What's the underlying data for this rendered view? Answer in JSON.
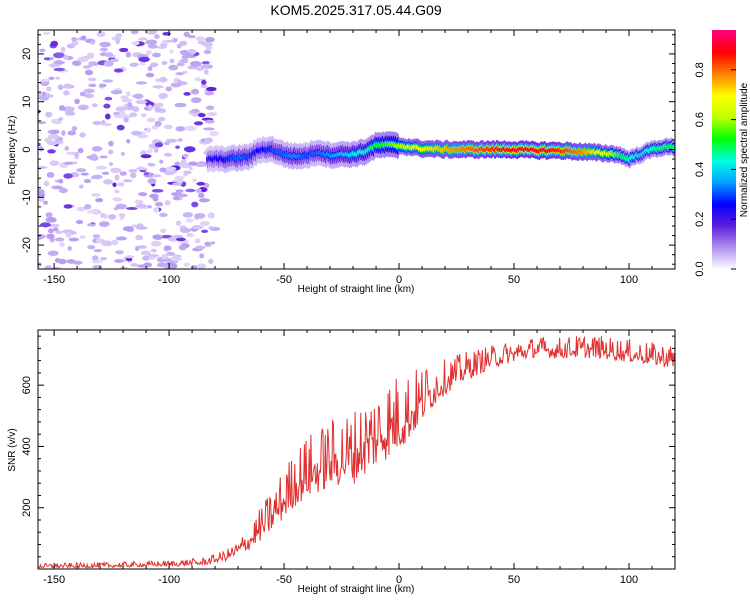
{
  "title": "KOM5.2025.317.05.44.G09",
  "chart_data": [
    {
      "type": "heatmap",
      "xlabel": "Height of straight line (km)",
      "ylabel": "Frequency (Hz)",
      "xlim": [
        -157,
        120
      ],
      "ylim": [
        -25,
        25
      ],
      "xticks": [
        -150,
        -100,
        -50,
        0,
        50,
        100
      ],
      "yticks": [
        -20,
        -10,
        0,
        10,
        20
      ],
      "colorbar": {
        "label": "Normalized spectral amplitude",
        "range": [
          0,
          0.96
        ],
        "ticks": [
          0.0,
          0.2,
          0.4,
          0.6,
          0.8
        ],
        "colors": [
          "#ffffff",
          "#b090f0",
          "#6020e0",
          "#0000ff",
          "#00a0ff",
          "#00ffe0",
          "#00ff00",
          "#c0ff00",
          "#ffff00",
          "#ff8000",
          "#ff0000",
          "#ff0080"
        ]
      },
      "noise_region_x": [
        -157,
        -80
      ],
      "signal_ridge": {
        "x": [
          -83,
          -75,
          -70,
          -65,
          -60,
          -55,
          -50,
          -45,
          -40,
          -35,
          -30,
          -25,
          -20,
          -15,
          -10,
          -5,
          0,
          5,
          10,
          20,
          30,
          40,
          50,
          60,
          70,
          80,
          90,
          95,
          100,
          105,
          110,
          115,
          120
        ],
        "freq": [
          -2,
          -2,
          -1.8,
          -1.5,
          0,
          0,
          -1,
          -1.5,
          -1.2,
          -0.5,
          -1.2,
          -1,
          -1,
          -0.5,
          0.8,
          1,
          0.8,
          0.5,
          0.2,
          0,
          0,
          0,
          0,
          -0.2,
          -0.2,
          -0.5,
          -0.8,
          -1,
          -2,
          -1,
          0,
          0.5,
          0.5
        ],
        "amp": [
          0.22,
          0.28,
          0.32,
          0.3,
          0.25,
          0.3,
          0.32,
          0.35,
          0.3,
          0.32,
          0.35,
          0.38,
          0.42,
          0.45,
          0.5,
          0.55,
          0.6,
          0.65,
          0.7,
          0.75,
          0.8,
          0.85,
          0.88,
          0.9,
          0.85,
          0.78,
          0.65,
          0.55,
          0.45,
          0.4,
          0.45,
          0.5,
          0.5
        ]
      }
    },
    {
      "type": "line",
      "xlabel": "Height of straight line (km)",
      "ylabel": "SNR (v/v)",
      "xlim": [
        -157,
        120
      ],
      "ylim": [
        0,
        780
      ],
      "xticks": [
        -150,
        -100,
        -50,
        0,
        50,
        100
      ],
      "yticks": [
        200,
        400,
        600
      ],
      "color": "#e03030",
      "envelope": {
        "x": [
          -157,
          -130,
          -100,
          -85,
          -80,
          -75,
          -70,
          -65,
          -60,
          -55,
          -50,
          -45,
          -40,
          -35,
          -30,
          -25,
          -20,
          -15,
          -10,
          -5,
          0,
          5,
          10,
          15,
          20,
          25,
          30,
          40,
          50,
          60,
          70,
          80,
          90,
          100,
          110,
          120
        ],
        "y": [
          8,
          10,
          15,
          20,
          30,
          40,
          60,
          90,
          130,
          170,
          220,
          270,
          300,
          320,
          340,
          350,
          360,
          390,
          420,
          450,
          470,
          500,
          540,
          580,
          610,
          630,
          650,
          680,
          700,
          715,
          710,
          715,
          710,
          700,
          690,
          680
        ]
      },
      "fluctuation": {
        "x": [
          -157,
          -100,
          -80,
          -70,
          -60,
          -50,
          -40,
          -30,
          -20,
          -10,
          0,
          10,
          20,
          40,
          60,
          80,
          100,
          120
        ],
        "y": [
          8,
          10,
          15,
          25,
          60,
          90,
          110,
          120,
          130,
          140,
          140,
          100,
          60,
          40,
          35,
          40,
          40,
          40
        ]
      }
    }
  ]
}
